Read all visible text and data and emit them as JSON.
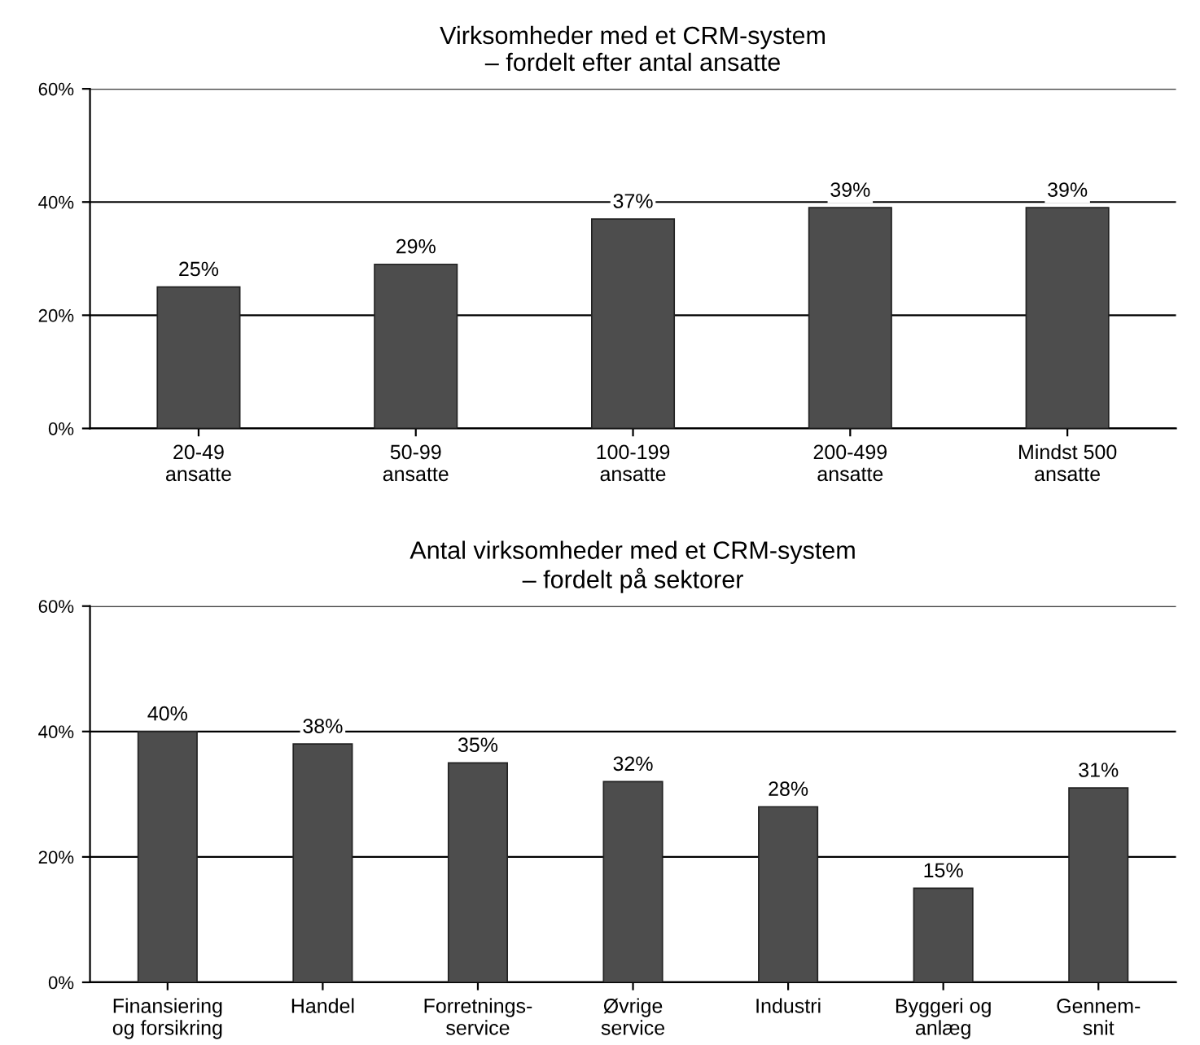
{
  "chart_data": [
    {
      "type": "bar",
      "title": "Virksomheder med et CRM-system\n– fordelt efter antal ansatte",
      "categories": [
        "20-49\nansatte",
        "50-99\nansatte",
        "100-199\nansatte",
        "200-499\nansatte",
        "Mindst 500\nansatte"
      ],
      "values": [
        25,
        29,
        37,
        39,
        39
      ],
      "color": "#4d4d4d",
      "value_labels": [
        "25%",
        "29%",
        "37%",
        "39%",
        "39%"
      ],
      "ylim": [
        0,
        60
      ],
      "yticks": [
        {
          "value": 0,
          "label": "0%"
        },
        {
          "value": 20,
          "label": "20%"
        },
        {
          "value": 40,
          "label": "40%"
        },
        {
          "value": 60,
          "label": "60%"
        }
      ],
      "grid": "y"
    },
    {
      "type": "bar",
      "title": "Antal virksomheder med et CRM-system\n– fordelt på sektorer",
      "categories": [
        "Finansiering\nog forsikring",
        "Handel",
        "Forretnings-\nservice",
        "Øvrige\nservice",
        "Industri",
        "Byggeri og\nanlæg",
        "Gennem-\nsnit"
      ],
      "values": [
        40,
        38,
        35,
        32,
        28,
        15,
        31
      ],
      "color": "#4d4d4d",
      "value_labels": [
        "40%",
        "38%",
        "35%",
        "32%",
        "28%",
        "15%",
        "31%"
      ],
      "ylim": [
        0,
        60
      ],
      "yticks": [
        {
          "value": 0,
          "label": "0%"
        },
        {
          "value": 20,
          "label": "20%"
        },
        {
          "value": 40,
          "label": "40%"
        },
        {
          "value": 60,
          "label": "60%"
        }
      ],
      "grid": "y"
    }
  ]
}
